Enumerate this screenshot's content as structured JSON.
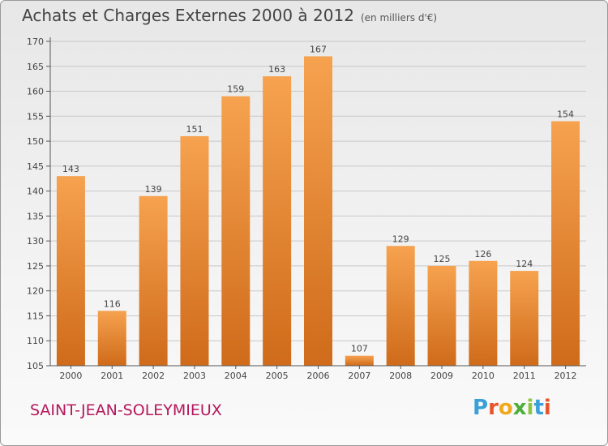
{
  "header": {
    "title": "Achats et Charges Externes 2000 à 2012",
    "unit": "(en milliers d'€)"
  },
  "footer": {
    "place": "SAINT-JEAN-SOLEYMIEUX",
    "logo": "Proxiti",
    "logo_colors": [
      "#3aa0d8",
      "#e8542a",
      "#f0a81e",
      "#4caf3a",
      "#8cc63f",
      "#3aa0d8",
      "#e8542a"
    ]
  },
  "colors": {
    "bar_light": "#f6a24f",
    "bar_dark": "#cf6b1a",
    "grid": "#c8c8c8",
    "axis": "#555555",
    "text": "#444444"
  },
  "chart_data": {
    "type": "bar",
    "categories": [
      "2000",
      "2001",
      "2002",
      "2003",
      "2004",
      "2005",
      "2006",
      "2007",
      "2008",
      "2009",
      "2010",
      "2011",
      "2012"
    ],
    "values": [
      143,
      116,
      139,
      151,
      159,
      163,
      167,
      107,
      129,
      125,
      126,
      124,
      154
    ],
    "ylim": [
      105,
      170
    ],
    "yticks": [
      105,
      110,
      115,
      120,
      125,
      130,
      135,
      140,
      145,
      150,
      155,
      160,
      165,
      170
    ],
    "grid": true,
    "legend": "none"
  }
}
